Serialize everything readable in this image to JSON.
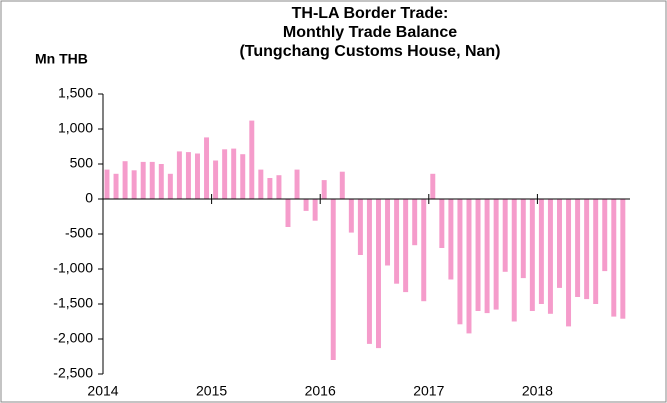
{
  "chart_data": {
    "type": "bar",
    "title": [
      "TH-LA Border Trade:",
      "Monthly Trade Balance",
      "(Tungchang Customs House, Nan)"
    ],
    "y_label": "Mn THB",
    "categories": [
      "2014",
      null,
      null,
      null,
      null,
      null,
      null,
      null,
      null,
      null,
      null,
      null,
      "2015",
      null,
      null,
      null,
      null,
      null,
      null,
      null,
      null,
      null,
      null,
      null,
      "2016",
      null,
      null,
      null,
      null,
      null,
      null,
      null,
      null,
      null,
      null,
      null,
      "2017",
      null,
      null,
      null,
      null,
      null,
      null,
      null,
      null,
      null,
      null,
      null,
      "2018",
      null,
      null,
      null,
      null,
      null,
      null,
      null,
      null,
      null
    ],
    "values": [
      420,
      360,
      540,
      410,
      530,
      530,
      500,
      360,
      680,
      670,
      650,
      880,
      550,
      710,
      720,
      640,
      1120,
      420,
      300,
      340,
      -400,
      420,
      -170,
      -310,
      270,
      -2300,
      390,
      -480,
      -800,
      -2070,
      -2130,
      -950,
      -1210,
      -1330,
      -660,
      -1460,
      360,
      -700,
      -1150,
      -1790,
      -1920,
      -1600,
      -1630,
      -1580,
      -1040,
      -1750,
      -1130,
      -1600,
      -1500,
      -1640,
      -1270,
      -1820,
      -1400,
      -1430,
      -1500,
      -1030,
      -1680,
      -1710
    ],
    "color": "#f59ccb",
    "ylim": [
      -2500,
      1500
    ],
    "yticks": [
      {
        "value": -2500,
        "label": "-2,500"
      },
      {
        "value": -2000,
        "label": "-2,000"
      },
      {
        "value": -1500,
        "label": "-1,500"
      },
      {
        "value": -1000,
        "label": "-1,000"
      },
      -500,
      0,
      500,
      {
        "value": 1000,
        "label": "1,000"
      },
      {
        "value": 1500,
        "label": "1,500"
      }
    ],
    "grid": false
  }
}
